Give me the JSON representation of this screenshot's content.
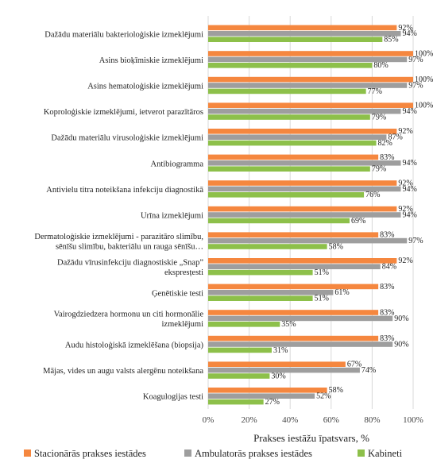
{
  "chart_data": {
    "type": "bar",
    "orientation": "horizontal",
    "xlabel": "Prakses iestāžu īpatsvars, %",
    "xlim": [
      0,
      100
    ],
    "xticks": [
      "0%",
      "20%",
      "40%",
      "60%",
      "80%",
      "100%"
    ],
    "grid": true,
    "legend_position": "bottom",
    "categories": [
      [
        "Dažādu materiālu bakterioloģiskie izmeklējumi"
      ],
      [
        "Asins bioķīmiskie izmeklējumi"
      ],
      [
        "Asins hematoloģiskie izmeklējumi"
      ],
      [
        "Koproloģiskie izmeklējumi, ietverot parazītāros"
      ],
      [
        "Dažādu materiālu virusoloģiskie izmeklējumi"
      ],
      [
        "Antibiogramma"
      ],
      [
        "Antivielu titra noteikšana infekciju diagnostikā"
      ],
      [
        "Urīna izmeklējumi"
      ],
      [
        "Dermatoloģiskie izmeklējumi - parazitāro slimību,",
        "sēnīšu slimību, bakteriālu un rauga sēnīšu…"
      ],
      [
        "Dažādu vīrusinfekciju diagnostiskie „Snap”",
        "ekspresțesti"
      ],
      [
        "Ģenētiskie testi"
      ],
      [
        "Vairogdziedzera hormonu un citi hormonālie",
        "izmeklējumi"
      ],
      [
        "Audu histoloģiskā izmeklēšana (biopsija)"
      ],
      [
        "Mājas, vides un augu valsts alergēnu noteikšana"
      ],
      [
        "Koagulogijas testi"
      ]
    ],
    "series": [
      {
        "name": "Stacionārās prakses iestādes",
        "color": "#F5873F",
        "values": [
          92,
          100,
          100,
          100,
          92,
          83,
          92,
          92,
          83,
          92,
          83,
          83,
          83,
          67,
          58
        ],
        "labels": [
          "92%",
          "100%",
          "100%",
          "100%",
          "92%",
          "83%",
          "92%",
          "92%",
          "83%",
          "92%",
          "83%",
          "83%",
          "83%",
          "67%",
          "58%"
        ]
      },
      {
        "name": "Ambulatorās prakses iestādes",
        "color": "#9E9E9E",
        "values": [
          94,
          97,
          97,
          94,
          87,
          94,
          94,
          94,
          97,
          84,
          61,
          90,
          90,
          74,
          52
        ],
        "labels": [
          "94%",
          "97%",
          "97%",
          "94%",
          "87%",
          "94%",
          "94%",
          "94%",
          "97%",
          "84%",
          "61%",
          "90%",
          "90%",
          "74%",
          "52%"
        ]
      },
      {
        "name": "Kabineti",
        "color": "#8DC04A",
        "values": [
          85,
          80,
          77,
          79,
          82,
          79,
          76,
          69,
          58,
          51,
          51,
          35,
          31,
          30,
          27
        ],
        "labels": [
          "85%",
          "80%",
          "77%",
          "79%",
          "82%",
          "79%",
          "76%",
          "69%",
          "58%",
          "51%",
          "51%",
          "35%",
          "31%",
          "30%",
          "27%"
        ]
      }
    ]
  }
}
